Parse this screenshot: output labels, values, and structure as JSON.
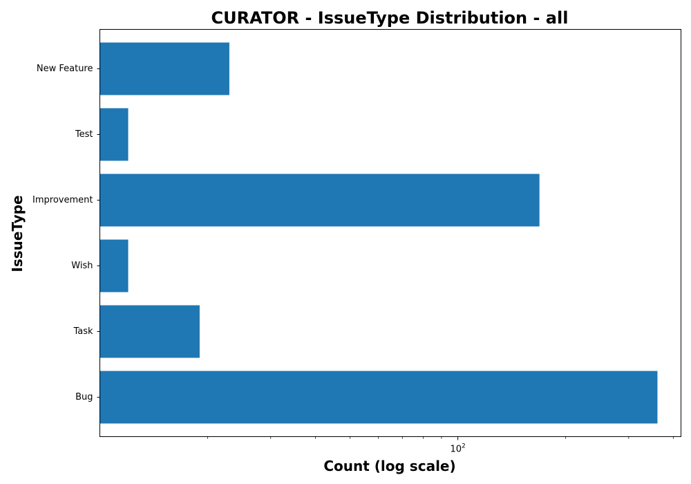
{
  "chart_data": {
    "type": "bar",
    "orientation": "horizontal",
    "title": "CURATOR - IssueType Distribution - all",
    "xlabel": "Count (log scale)",
    "ylabel": "IssueType",
    "x_scale": "log",
    "xlim": [
      10,
      420
    ],
    "x_ticks": [
      {
        "value": 100,
        "base": "10",
        "exponent": "2"
      }
    ],
    "x_minor_ticks": [
      20,
      30,
      40,
      50,
      60,
      70,
      80,
      90,
      200,
      300,
      400
    ],
    "categories": [
      "Bug",
      "Task",
      "Wish",
      "Improvement",
      "Test",
      "New Feature"
    ],
    "values": [
      361,
      19,
      12,
      169,
      12,
      23
    ],
    "bar_color": "#1f77b4",
    "grid": false,
    "legend": "none"
  }
}
